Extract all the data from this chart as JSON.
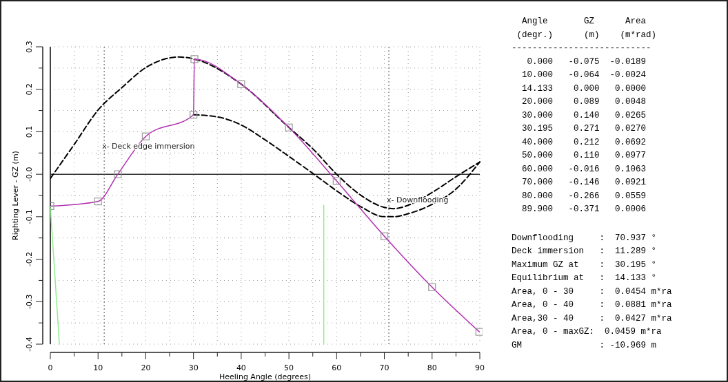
{
  "chart_data": {
    "type": "line",
    "xlabel": "Heeling Angle (degrees)",
    "ylabel": "Righting Lever - GZ (m)",
    "xlim": [
      0,
      90
    ],
    "xticks": [
      0,
      {
        "value": 5,
        "label": null
      },
      10,
      {
        "value": 15,
        "label": null
      },
      20,
      {
        "value": 25,
        "label": null
      },
      30,
      {
        "value": 35,
        "label": null
      },
      40,
      {
        "value": 45,
        "label": null
      },
      50,
      {
        "value": 55,
        "label": null
      },
      60,
      {
        "value": 65,
        "label": null
      },
      70,
      {
        "value": 75,
        "label": null
      },
      80,
      {
        "value": 85,
        "label": null
      },
      90
    ],
    "ylim": [
      -0.4,
      0.3
    ],
    "yticks": [
      -0.4,
      {
        "value": -0.35,
        "label": null
      },
      -0.3,
      {
        "value": -0.25,
        "label": null
      },
      -0.2,
      {
        "value": -0.15,
        "label": null
      },
      -0.1,
      {
        "value": -0.05,
        "label": null
      },
      {
        "value": 0,
        "label": "-0.0"
      },
      {
        "value": 0.05,
        "label": null
      },
      0.1,
      {
        "value": 0.15,
        "label": null
      },
      0.2,
      {
        "value": 0.25,
        "label": null
      },
      0.3
    ],
    "grid": true,
    "series": [
      {
        "color": "#000000",
        "line_style": "dashed",
        "marker": "none",
        "x": [
          0,
          5,
          10,
          15,
          20,
          27,
          30.195,
          40,
          50,
          55,
          60,
          65,
          70,
          72,
          75,
          80,
          85,
          90
        ],
        "values": [
          -0.01,
          0.07,
          0.151,
          0.204,
          0.251,
          0.276,
          0.271,
          0.212,
          0.11,
          0.06,
          0.0,
          -0.049,
          -0.078,
          -0.081,
          -0.073,
          -0.043,
          -0.006,
          0.029
        ]
      },
      {
        "color": "#000000",
        "line_style": "dashed",
        "marker": "none",
        "x": [
          30,
          35,
          40,
          45,
          50,
          55,
          60,
          65,
          70,
          72,
          75,
          80,
          85,
          90
        ],
        "values": [
          0.14,
          0.135,
          0.116,
          0.081,
          0.042,
          0.002,
          -0.039,
          -0.076,
          -0.1,
          -0.1,
          -0.093,
          -0.071,
          -0.035,
          0.029
        ]
      },
      {
        "color": "#b030b0",
        "line_style": "solid",
        "marker": "square",
        "x": [
          0,
          10,
          14.133,
          20,
          30,
          30.195,
          40,
          50,
          60,
          70,
          80,
          89.9
        ],
        "values": [
          -0.075,
          -0.064,
          0,
          0.089,
          0.14,
          0.271,
          0.212,
          0.11,
          -0.016,
          -0.146,
          -0.266,
          -0.371
        ]
      },
      {
        "color": "#90ee90",
        "line_style": "solid",
        "marker": "none",
        "x": [
          0,
          1.9
        ],
        "values": [
          -0.075,
          -0.4
        ]
      },
      {
        "color": "#90ee90",
        "line_style": "solid",
        "marker": "none",
        "x": [
          57.3,
          57.3
        ],
        "values": [
          -0.073,
          -0.4
        ]
      }
    ],
    "ref_lines": [
      {
        "axis": "y",
        "value": 0,
        "color": "#333333",
        "line_style": "solid"
      },
      {
        "axis": "x",
        "value": 11.289,
        "color": "#555555",
        "line_style": "dotted"
      },
      {
        "axis": "x",
        "value": 70.937,
        "color": "#555555",
        "line_style": "dotted"
      }
    ],
    "annotations": [
      {
        "text": "x- Deck edge immersion",
        "x": 11.289,
        "y": 0.066
      },
      {
        "text": "x- Downflooding",
        "x": 70.937,
        "y": -0.06
      },
      "  Angle       GZ      Area",
      " (degr.)      (m)    (m*rad)",
      "---------------------------",
      "   0.000   -0.075  -0.0189",
      "  10.000   -0.064  -0.0024",
      "  14.133    0.000   0.0000",
      "  20.000    0.089   0.0048",
      "  30.000    0.140   0.0265",
      "  30.195    0.271   0.0270",
      "  40.000    0.212   0.0692",
      "  50.000    0.110   0.0977",
      "  60.000   -0.016   0.1063",
      "  70.000   -0.146   0.0921",
      "  80.000   -0.266   0.0559",
      "  89.900   -0.371   0.0006",
      "Downflooding     :  70.937 °",
      "Deck immersion   :  11.289 °",
      "Maximum GZ at    :  30.195 °",
      "Equilibrium at   :  14.133 °",
      "Area, 0 - 30     :  0.0454 m*ra",
      "Area, 0 - 40     :  0.0881 m*ra",
      "Area,30 - 40     :  0.0427 m*ra",
      "Area, 0 - maxGZ:  0.0459 m*ra",
      "GM               : -10.969 m"
    ]
  }
}
